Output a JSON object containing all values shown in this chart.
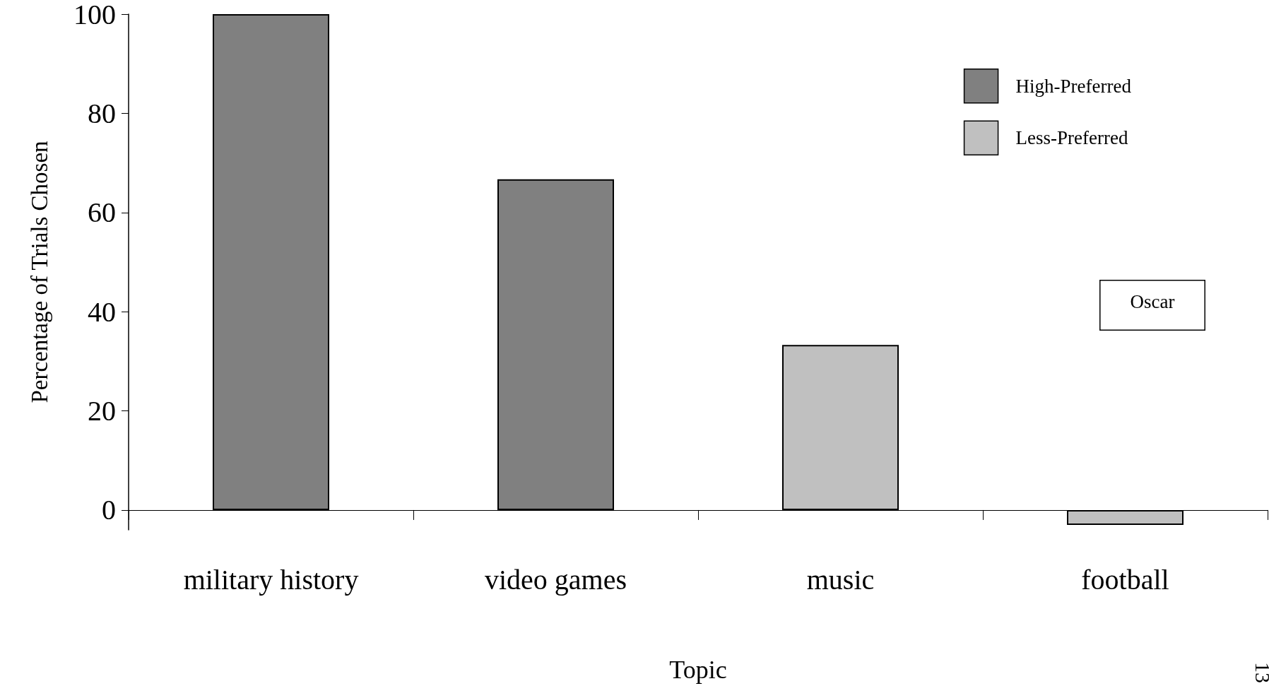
{
  "chart_data": {
    "type": "bar",
    "xlabel": "Topic",
    "ylabel": "Percentage of Trials Chosen",
    "categories": [
      "military history",
      "video games",
      "music",
      "football"
    ],
    "series": [
      {
        "name": "High-Preferred",
        "color": "#808080",
        "values": [
          100,
          66.7,
          null,
          null
        ]
      },
      {
        "name": "Less-Preferred",
        "color": "#c0c0c0",
        "values": [
          null,
          null,
          33.3,
          -3
        ]
      }
    ],
    "ylim": [
      -4,
      100
    ],
    "yticks": [
      0,
      20,
      40,
      60,
      80,
      100
    ],
    "grid": false,
    "legend": "top right",
    "annotations": [
      "Oscar",
      "13"
    ]
  }
}
